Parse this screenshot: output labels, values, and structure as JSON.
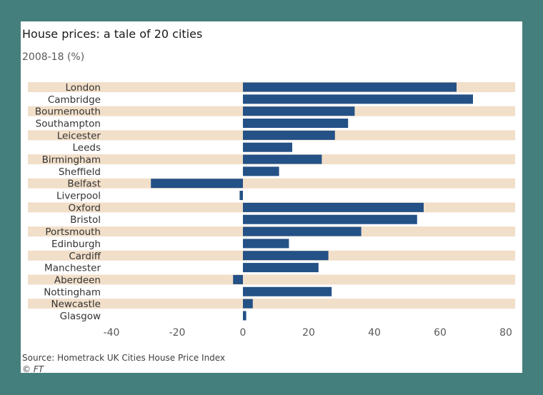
{
  "colors": {
    "frame": "#447f7d",
    "panel": "#ffffff",
    "band": "#f2dfc9",
    "bar": "#245186",
    "label": "#333333",
    "tick": "#595959"
  },
  "chart_data": {
    "type": "bar",
    "orientation": "horizontal",
    "title": "House prices: a tale of 20 cities",
    "subtitle": "2008-18 (%)",
    "categories": [
      "London",
      "Cambridge",
      "Bournemouth",
      "Southampton",
      "Leicester",
      "Leeds",
      "Birmingham",
      "Sheffield",
      "Belfast",
      "Liverpool",
      "Oxford",
      "Bristol",
      "Portsmouth",
      "Edinburgh",
      "Cardiff",
      "Manchester",
      "Aberdeen",
      "Nottingham",
      "Newcastle",
      "Glasgow"
    ],
    "values": [
      65,
      70,
      34,
      32,
      28,
      15,
      24,
      11,
      -28,
      -1,
      55,
      53,
      36,
      14,
      26,
      23,
      -3,
      27,
      3,
      1
    ],
    "xlim": [
      -40,
      83
    ],
    "xticks": [
      "-40",
      "-20",
      "0",
      "20",
      "40",
      "60",
      "80"
    ],
    "xtick_values": [
      -40,
      -20,
      0,
      20,
      40,
      60,
      80
    ],
    "band_rows": "alternating",
    "legend": "none",
    "grid": false
  },
  "footer": {
    "source": "Source: Hometrack UK Cities House Price Index",
    "copyright": "© FT"
  }
}
